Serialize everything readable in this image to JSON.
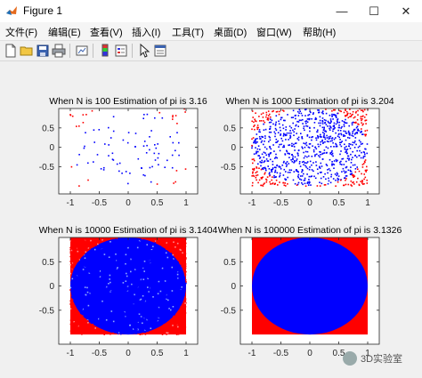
{
  "window": {
    "title": "Figure 1"
  },
  "window_buttons": {
    "minimize": "—",
    "maximize": "☐",
    "close": "✕"
  },
  "menu": [
    {
      "label": "文件(F)"
    },
    {
      "label": "编辑(E)"
    },
    {
      "label": "查看(V)"
    },
    {
      "label": "插入(I)"
    },
    {
      "label": "工具(T)"
    },
    {
      "label": "桌面(D)"
    },
    {
      "label": "窗口(W)"
    },
    {
      "label": "帮助(H)"
    }
  ],
  "toolbar": [
    {
      "icon": "new-figure-icon"
    },
    {
      "icon": "open-file-icon"
    },
    {
      "icon": "save-icon"
    },
    {
      "icon": "print-icon"
    },
    {
      "icon": "link-plot-icon"
    },
    {
      "icon": "insert-colorbar-icon"
    },
    {
      "icon": "insert-legend-icon"
    },
    {
      "icon": "edit-plot-arrow-icon"
    },
    {
      "icon": "property-inspector-icon"
    }
  ],
  "colors": {
    "inside": "#0000ff",
    "outside": "#ff0000"
  },
  "watermark": {
    "text": "3D实验室"
  },
  "chart_data": [
    {
      "type": "scatter",
      "title": "When N is 100 Estimation of pi is 3.16",
      "n": 100,
      "xlim": [
        -1.2,
        1.2
      ],
      "ylim": [
        -1.2,
        1.0
      ],
      "xticks": [
        -1,
        -0.5,
        0,
        0.5,
        1
      ],
      "yticks": [
        -0.5,
        0,
        0.5
      ],
      "series": [
        {
          "name": "inside",
          "color": "#0000ff"
        },
        {
          "name": "outside",
          "color": "#ff0000"
        }
      ]
    },
    {
      "type": "scatter",
      "title": "When N is 1000 Estimation of pi is 3.204",
      "n": 1000,
      "xlim": [
        -1.2,
        1.2
      ],
      "ylim": [
        -1.2,
        1.0
      ],
      "xticks": [
        -1,
        -0.5,
        0,
        0.5,
        1
      ],
      "yticks": [
        -0.5,
        0,
        0.5
      ],
      "series": [
        {
          "name": "inside",
          "color": "#0000ff"
        },
        {
          "name": "outside",
          "color": "#ff0000"
        }
      ]
    },
    {
      "type": "scatter",
      "title": "When N is 10000 Estimation of pi is 3.1404",
      "n": 10000,
      "xlim": [
        -1.2,
        1.2
      ],
      "ylim": [
        -1.2,
        1.0
      ],
      "xticks": [
        -1,
        -0.5,
        0,
        0.5,
        1
      ],
      "yticks": [
        -0.5,
        0,
        0.5
      ],
      "series": [
        {
          "name": "inside",
          "color": "#0000ff"
        },
        {
          "name": "outside",
          "color": "#ff0000"
        }
      ]
    },
    {
      "type": "scatter",
      "title": "When N is 100000 Estimation of pi is 3.1326",
      "n": 100000,
      "xlim": [
        -1.2,
        1.2
      ],
      "ylim": [
        -1.2,
        1.0
      ],
      "xticks": [
        -1,
        -0.5,
        0,
        0.5,
        1
      ],
      "yticks": [
        -0.5,
        0,
        0.5
      ],
      "series": [
        {
          "name": "inside",
          "color": "#0000ff"
        },
        {
          "name": "outside",
          "color": "#ff0000"
        }
      ]
    }
  ]
}
